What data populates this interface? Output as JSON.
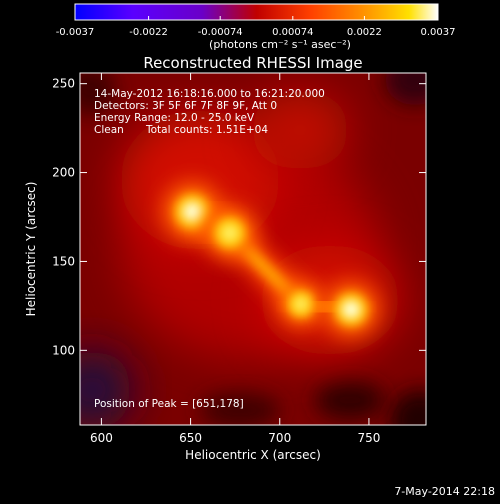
{
  "chart_data": {
    "type": "heatmap",
    "title": "Reconstructed RHESSI Image",
    "xlabel": "Heliocentric X (arcsec)",
    "ylabel": "Heliocentric Y (arcsec)",
    "xlim": [
      588,
      782
    ],
    "ylim": [
      58,
      256
    ],
    "x_ticks": [
      600,
      650,
      700,
      750
    ],
    "y_ticks": [
      100,
      150,
      200,
      250
    ],
    "colorbar": {
      "min": -0.0037,
      "max": 0.0037,
      "ticks": [
        -0.0037,
        -0.0022,
        -0.00074,
        0.00074,
        0.0022,
        0.0037
      ],
      "tick_labels": [
        "-0.0037",
        "-0.0022",
        "-0.00074",
        "0.00074",
        "0.0022",
        "0.0037"
      ],
      "unit_label": "(photons cm⁻² s⁻¹ asec⁻²)"
    },
    "sources": [
      {
        "x": 651,
        "y": 178,
        "peak": 0.0037
      },
      {
        "x": 672,
        "y": 166,
        "peak": 0.0033
      },
      {
        "x": 712,
        "y": 126,
        "peak": 0.0028
      },
      {
        "x": 740,
        "y": 123,
        "peak": 0.0035
      }
    ],
    "peak_position": [
      651,
      178
    ]
  },
  "annotations": {
    "time_range": "14-May-2012 16:18:16.000 to 16:21:20.000",
    "detectors": "Detectors: 3F 5F 6F 7F 8F 9F, Att 0",
    "energy_range": "Energy Range: 12.0 - 25.0 keV",
    "clean_label": "Clean",
    "total_counts": "Total counts: 1.51E+04",
    "peak_position_text": "Position of Peak = [651,178]"
  },
  "footer": {
    "date": "7-May-2014 22:18"
  }
}
